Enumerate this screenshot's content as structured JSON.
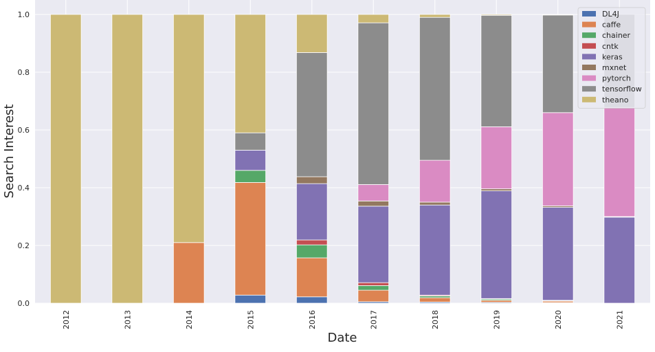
{
  "chart_data": {
    "type": "bar",
    "stacked": true,
    "title": "",
    "xlabel": "Date",
    "ylabel": "Search Interest",
    "ylim": [
      0,
      1.05
    ],
    "yticks": [
      "0.0",
      "0.2",
      "0.4",
      "0.6",
      "0.8",
      "1.0"
    ],
    "grid": true,
    "legend_position": "top-right",
    "categories": [
      "2012",
      "2013",
      "2014",
      "2015",
      "2016",
      "2017",
      "2018",
      "2019",
      "2020",
      "2021"
    ],
    "series": [
      {
        "name": "DL4J",
        "color": "#4C72B0",
        "values": [
          0,
          0,
          0,
          0.028,
          0.022,
          0.005,
          0.004,
          0.003,
          0.002,
          0
        ]
      },
      {
        "name": "caffe",
        "color": "#DD8452",
        "values": [
          0,
          0,
          0.21,
          0.39,
          0.135,
          0.04,
          0.015,
          0.007,
          0.005,
          0
        ]
      },
      {
        "name": "chainer",
        "color": "#55A868",
        "values": [
          0,
          0,
          0,
          0.042,
          0.045,
          0.016,
          0.006,
          0.004,
          0.002,
          0
        ]
      },
      {
        "name": "cntk",
        "color": "#C44E52",
        "values": [
          0,
          0,
          0,
          0,
          0.017,
          0.01,
          0.003,
          0.002,
          0.001,
          0
        ]
      },
      {
        "name": "keras",
        "color": "#8172B3",
        "values": [
          0,
          0,
          0,
          0.07,
          0.195,
          0.265,
          0.312,
          0.373,
          0.322,
          0.298
        ]
      },
      {
        "name": "mxnet",
        "color": "#937860",
        "values": [
          0,
          0,
          0,
          0,
          0.024,
          0.018,
          0.01,
          0.007,
          0.005,
          0.002
        ]
      },
      {
        "name": "pytorch",
        "color": "#DA8BC3",
        "values": [
          0,
          0,
          0,
          0,
          0,
          0.057,
          0.145,
          0.215,
          0.323,
          0.378
        ]
      },
      {
        "name": "tensorflow",
        "color": "#8C8C8C",
        "values": [
          0,
          0,
          0,
          0.06,
          0.43,
          0.56,
          0.495,
          0.386,
          0.338,
          0.322
        ]
      },
      {
        "name": "theano",
        "color": "#CCB974",
        "values": [
          1.0,
          1.0,
          0.79,
          0.41,
          0.132,
          0.029,
          0.01,
          0.003,
          0.002,
          0
        ]
      }
    ]
  }
}
